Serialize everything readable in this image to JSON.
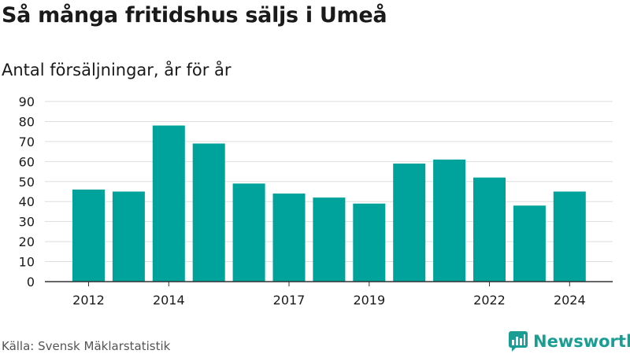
{
  "header": {
    "title": "Så många fritidshus säljs i Umeå",
    "subtitle": "Antal försäljningar, år för år"
  },
  "footer": {
    "source": "Källa: Svensk Mäklarstatistik",
    "brand": "Newsworthy"
  },
  "colors": {
    "bar": "#00a39b",
    "grid": "#dddddd",
    "axis": "#333333",
    "brand": "#1a9e93"
  },
  "icons": {
    "logo": "newsworthy-logo-icon"
  },
  "chart_data": {
    "type": "bar",
    "title": "Så många fritidshus säljs i Umeå",
    "subtitle": "Antal försäljningar, år för år",
    "categories": [
      "2012",
      "2013",
      "2014",
      "2015",
      "2016",
      "2017",
      "2018",
      "2019",
      "2020",
      "2021",
      "2022",
      "2023",
      "2024"
    ],
    "values": [
      46,
      45,
      78,
      69,
      49,
      44,
      42,
      39,
      59,
      61,
      52,
      38,
      45
    ],
    "x_tick_labels": [
      "2012",
      "",
      "2014",
      "",
      "",
      "2017",
      "",
      "2019",
      "",
      "",
      "2022",
      "",
      "2024"
    ],
    "y_ticks": [
      0,
      10,
      20,
      30,
      40,
      50,
      60,
      70,
      80,
      90
    ],
    "ylim": [
      0,
      90
    ],
    "xlabel": "",
    "ylabel": "",
    "grid": true,
    "legend": "none"
  }
}
